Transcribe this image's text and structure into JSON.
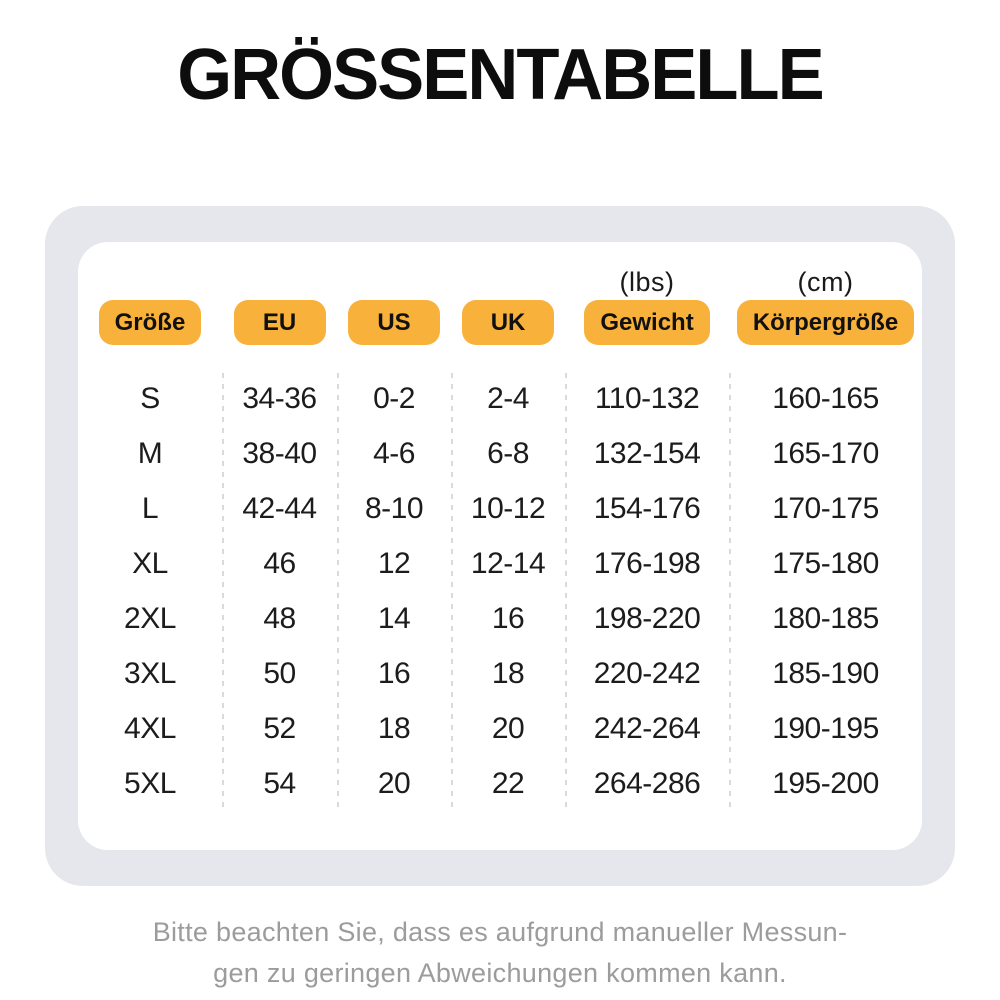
{
  "title": "GRÖSSENTABELLE",
  "table": {
    "columns": [
      {
        "key": "groesse",
        "label": "Größe",
        "unit": ""
      },
      {
        "key": "eu",
        "label": "EU",
        "unit": ""
      },
      {
        "key": "us",
        "label": "US",
        "unit": ""
      },
      {
        "key": "uk",
        "label": "UK",
        "unit": ""
      },
      {
        "key": "gewicht",
        "label": "Gewicht",
        "unit": "(lbs)"
      },
      {
        "key": "koerpergroesse",
        "label": "Körpergröße",
        "unit": "(cm)"
      }
    ],
    "rows": [
      [
        "S",
        "34-36",
        "0-2",
        "2-4",
        "110-132",
        "160-165"
      ],
      [
        "M",
        "38-40",
        "4-6",
        "6-8",
        "132-154",
        "165-170"
      ],
      [
        "L",
        "42-44",
        "8-10",
        "10-12",
        "154-176",
        "170-175"
      ],
      [
        "XL",
        "46",
        "12",
        "12-14",
        "176-198",
        "175-180"
      ],
      [
        "2XL",
        "48",
        "14",
        "16",
        "198-220",
        "180-185"
      ],
      [
        "3XL",
        "50",
        "16",
        "18",
        "220-242",
        "185-190"
      ],
      [
        "4XL",
        "52",
        "18",
        "20",
        "242-264",
        "190-195"
      ],
      [
        "5XL",
        "54",
        "20",
        "22",
        "264-286",
        "195-200"
      ]
    ]
  },
  "footnote": {
    "line1": "Bitte beachten Sie, dass es aufgrund manueller Messun-",
    "line2": "gen zu geringen Abweichungen kommen kann."
  },
  "colors": {
    "pill": "#f8b23b",
    "card_outer": "#e5e7ec",
    "card_inner": "#ffffff",
    "title_text": "#0d0d0d",
    "body_text": "#1c1c1c",
    "footnote_text": "#9c9c9c",
    "divider": "#dadada"
  }
}
